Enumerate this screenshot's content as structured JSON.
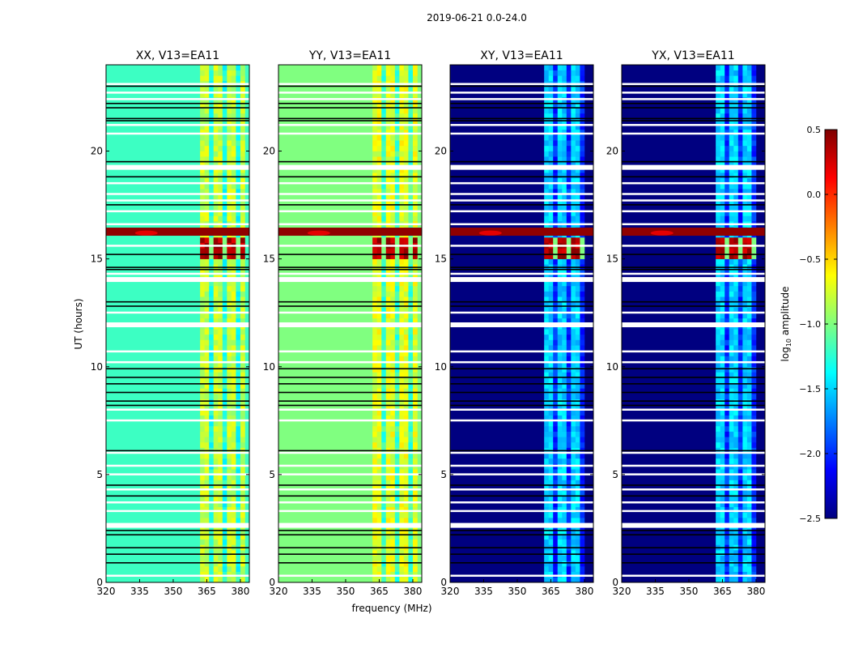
{
  "chart_data": {
    "type": "heatmap",
    "title": "2019-06-21 0.0-24.0",
    "xlabel": "frequency (MHz)",
    "ylabel": "UT (hours)",
    "xlim": [
      320,
      384
    ],
    "ylim": [
      0,
      24
    ],
    "xticks": [
      "320",
      "335",
      "350",
      "365",
      "380"
    ],
    "yticks": [
      "0",
      "5",
      "10",
      "15",
      "20"
    ],
    "panels": [
      {
        "title": "XX, V13=EA11",
        "background_log_amp": -1.2,
        "band_log_amp": -0.8,
        "band_mhz": [
          362,
          382
        ],
        "rfi_hour": 16.2
      },
      {
        "title": "YY, V13=EA11",
        "background_log_amp": -1.0,
        "band_log_amp": -0.7,
        "band_mhz": [
          362,
          382
        ],
        "rfi_hour": 16.2
      },
      {
        "title": "XY, V13=EA11",
        "background_log_amp": -2.5,
        "band_log_amp": -1.5,
        "band_mhz": [
          362,
          380
        ],
        "rfi_hour": 16.2
      },
      {
        "title": "YX, V13=EA11",
        "background_log_amp": -2.5,
        "band_log_amp": -1.5,
        "band_mhz": [
          362,
          380
        ],
        "rfi_hour": 16.2
      }
    ],
    "strong_rfi_hours": [
      15.0,
      15.9
    ],
    "flagged_white_hours": [
      0.3,
      2.7,
      3.3,
      3.7,
      4.3,
      5.0,
      5.4,
      6.0,
      7.5,
      8.0,
      10.2,
      10.7,
      12.0,
      12.5,
      14.1,
      14.3,
      15.6,
      16.6,
      17.2,
      17.7,
      18.0,
      18.5,
      19.3,
      20.8,
      21.2,
      22.4,
      22.7,
      23.1
    ],
    "black_line_hours": [
      0.9,
      1.3,
      1.6,
      2.2,
      2.4,
      4.0,
      4.5,
      6.1,
      8.2,
      8.4,
      8.8,
      9.2,
      9.5,
      9.9,
      11.9,
      12.8,
      13.0,
      14.5,
      14.6,
      15.2,
      17.5,
      18.8,
      19.2,
      19.5,
      21.4,
      21.5,
      22.0,
      22.2,
      23.0
    ],
    "colorbar": {
      "label": "log10 amplitude",
      "range": [
        -2.5,
        0.5
      ],
      "ticks": [
        "0.5",
        "0.0",
        "−0.5",
        "−1.0",
        "−1.5",
        "−2.0",
        "−2.5"
      ],
      "colormap": "jet"
    }
  }
}
